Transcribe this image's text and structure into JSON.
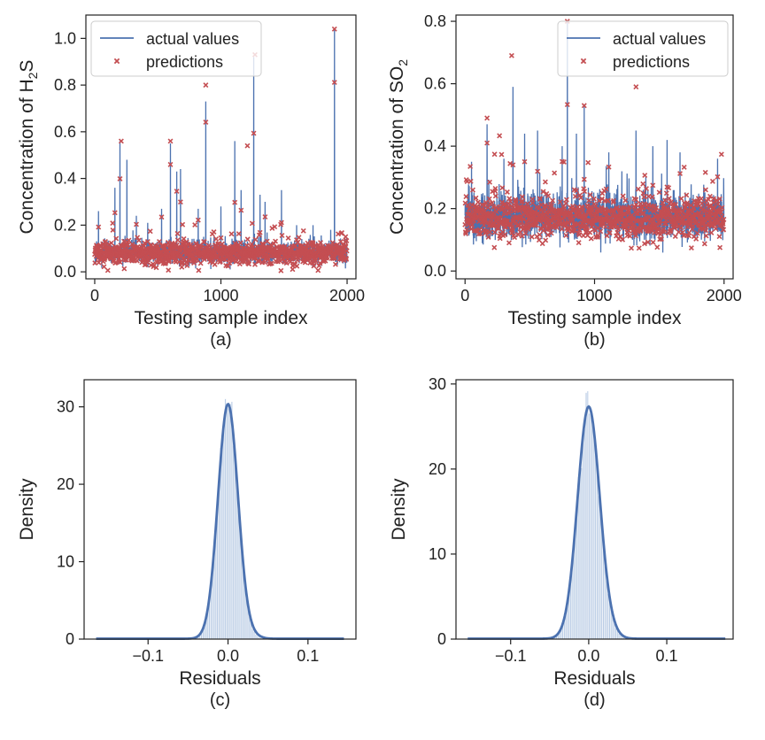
{
  "figure": {
    "panels": [
      {
        "caption": "(a)",
        "xlabel": "Testing sample index",
        "ylabel_main": "Concentration of H",
        "ylabel_sub": "2",
        "ylabel_tail": "S",
        "legend": {
          "line": "actual values",
          "marker": "predictions"
        }
      },
      {
        "caption": "(b)",
        "xlabel": "Testing sample index",
        "ylabel_main": "Concentration of SO",
        "ylabel_sub": "2",
        "ylabel_tail": "",
        "legend": {
          "line": "actual values",
          "marker": "predictions"
        }
      },
      {
        "caption": "(c)",
        "xlabel": "Residuals",
        "ylabel": "Density"
      },
      {
        "caption": "(d)",
        "xlabel": "Residuals",
        "ylabel": "Density"
      }
    ]
  },
  "colors": {
    "line": "#4c72b0",
    "marker": "#c44e52",
    "hist": "#b8cbe4",
    "axis": "#222222"
  },
  "chart_data": [
    {
      "type": "line",
      "title": "(a)",
      "xlabel": "Testing sample index",
      "ylabel": "Concentration of H2S",
      "xlim": [
        -70,
        2070
      ],
      "ylim": [
        -0.03,
        1.1
      ],
      "xticks": [
        0,
        1000,
        2000
      ],
      "yticks": [
        0.0,
        0.2,
        0.4,
        0.6,
        0.8,
        1.0
      ],
      "series": [
        {
          "name": "actual values",
          "style": "line"
        },
        {
          "name": "predictions",
          "style": "marker-x"
        }
      ],
      "n_points": 2000,
      "baseline_mean": 0.08,
      "baseline_spread": 0.04,
      "peaks": [
        [
          30,
          0.26
        ],
        [
          160,
          0.36
        ],
        [
          200,
          0.56
        ],
        [
          255,
          0.48
        ],
        [
          330,
          0.24
        ],
        [
          420,
          0.21
        ],
        [
          530,
          0.27
        ],
        [
          600,
          0.55
        ],
        [
          650,
          0.43
        ],
        [
          680,
          0.44
        ],
        [
          820,
          0.27
        ],
        [
          880,
          0.73
        ],
        [
          1000,
          0.28
        ],
        [
          1110,
          0.56
        ],
        [
          1160,
          0.35
        ],
        [
          1260,
          0.92
        ],
        [
          1310,
          0.33
        ],
        [
          1350,
          0.3
        ],
        [
          1480,
          0.35
        ],
        [
          1600,
          0.2
        ],
        [
          1730,
          0.2
        ],
        [
          1870,
          0.18
        ],
        [
          1900,
          1.04
        ]
      ],
      "spiky_predictions": [
        [
          210,
          0.56
        ],
        [
          600,
          0.56
        ],
        [
          880,
          0.8
        ],
        [
          1210,
          0.54
        ],
        [
          1270,
          0.93
        ],
        [
          1900,
          1.04
        ]
      ],
      "legend_position": "upper left"
    },
    {
      "type": "line",
      "title": "(b)",
      "xlabel": "Testing sample index",
      "ylabel": "Concentration of SO2",
      "xlim": [
        -70,
        2070
      ],
      "ylim": [
        -0.025,
        0.82
      ],
      "xticks": [
        0,
        1000,
        2000
      ],
      "yticks": [
        0.0,
        0.2,
        0.4,
        0.6,
        0.8
      ],
      "series": [
        {
          "name": "actual values",
          "style": "line"
        },
        {
          "name": "predictions",
          "style": "marker-x"
        }
      ],
      "n_points": 2000,
      "baseline_mean": 0.17,
      "baseline_spread": 0.06,
      "peaks": [
        [
          50,
          0.35
        ],
        [
          170,
          0.47
        ],
        [
          300,
          0.36
        ],
        [
          370,
          0.59
        ],
        [
          460,
          0.44
        ],
        [
          560,
          0.45
        ],
        [
          750,
          0.4
        ],
        [
          790,
          0.8
        ],
        [
          860,
          0.44
        ],
        [
          920,
          0.53
        ],
        [
          1110,
          0.38
        ],
        [
          1320,
          0.45
        ],
        [
          1450,
          0.4
        ],
        [
          1560,
          0.42
        ],
        [
          1660,
          0.38
        ],
        [
          1950,
          0.36
        ]
      ],
      "spiky_predictions": [
        [
          170,
          0.49
        ],
        [
          360,
          0.69
        ],
        [
          790,
          0.8
        ],
        [
          920,
          0.53
        ],
        [
          1320,
          0.59
        ]
      ],
      "legend_position": "upper right"
    },
    {
      "type": "histogram",
      "title": "(c)",
      "xlabel": "Residuals",
      "ylabel": "Density",
      "xlim": [
        -0.18,
        0.16
      ],
      "ylim": [
        0,
        33.5
      ],
      "xticks": [
        -0.1,
        0.0,
        0.1
      ],
      "xtick_labels": [
        "−0.1",
        "0.0",
        "0.1"
      ],
      "yticks": [
        0,
        10,
        20,
        30
      ],
      "range": [
        -0.165,
        0.145
      ],
      "kde_peak": 30.3,
      "kde_sigma": 0.0125,
      "hist_max": 32.3
    },
    {
      "type": "histogram",
      "title": "(d)",
      "xlabel": "Residuals",
      "ylabel": "Density",
      "xlim": [
        -0.17,
        0.185
      ],
      "ylim": [
        0,
        30.5
      ],
      "xticks": [
        -0.1,
        0.0,
        0.1
      ],
      "xtick_labels": [
        "−0.1",
        "0.0",
        "0.1"
      ],
      "yticks": [
        0,
        10,
        20,
        30
      ],
      "range": [
        -0.155,
        0.175
      ],
      "kde_peak": 27.3,
      "kde_sigma": 0.0142,
      "hist_max": 29.2
    }
  ]
}
